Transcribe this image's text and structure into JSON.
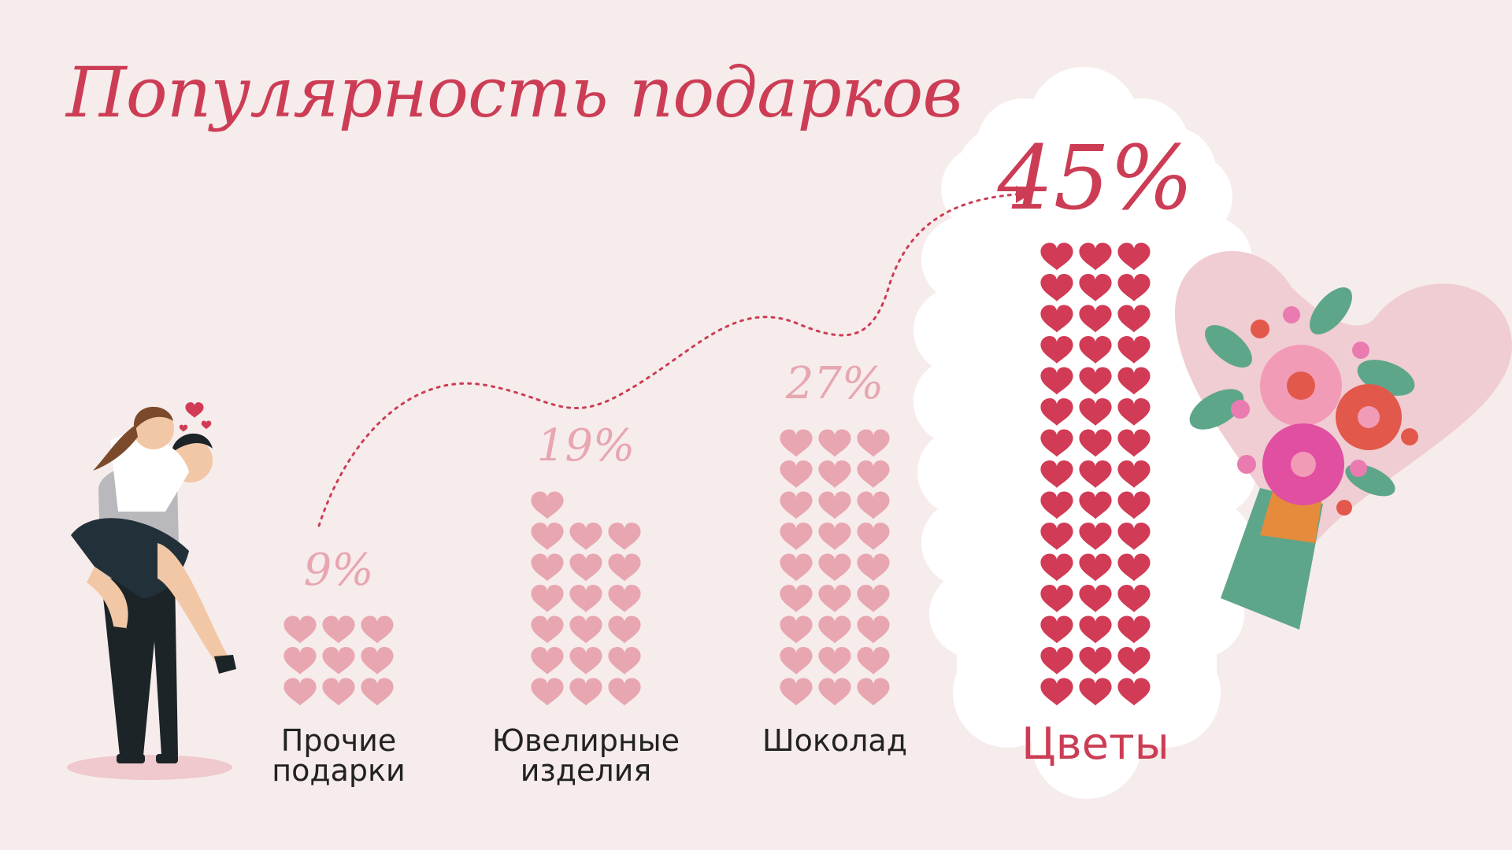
{
  "page": {
    "title": "Популярность подарков",
    "colors": {
      "background": "#f6eceb",
      "accent": "#cc3d55",
      "light_heart": "#e8a6b1",
      "dark_heart": "#d13b55",
      "cloud": "#ffffff"
    }
  },
  "chart_data": {
    "type": "bar",
    "unit_symbol": "heart",
    "categories": [
      "Прочие\nподарки",
      "Ювелирные\nизделия",
      "Шоколад",
      "Цветы"
    ],
    "values": [
      9,
      19,
      27,
      45
    ],
    "value_labels": [
      "9%",
      "19%",
      "27%",
      "45%"
    ],
    "highlighted": [
      false,
      false,
      false,
      true
    ],
    "trend_arrow": true
  },
  "illustrations": [
    "couple-icon",
    "flower-bouquet-icon"
  ]
}
